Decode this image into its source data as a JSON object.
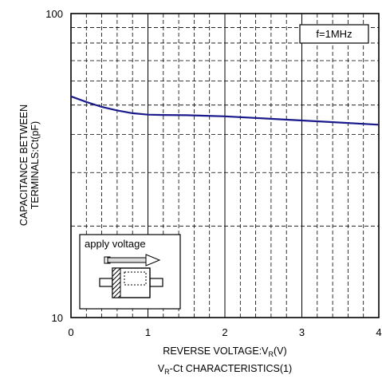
{
  "chart_data": {
    "type": "line",
    "title": "",
    "caption_main": "V",
    "caption_sub": "R",
    "caption_rest": "-Ct CHARACTERISTICS(1)",
    "xlabel_main": "REVERSE VOLTAGE:V",
    "xlabel_sub": "R",
    "xlabel_rest": "(V)",
    "ylabel_line1": "CAPACITANCE BETWEEN",
    "ylabel_line2": "TERMINALS:Ct(pF)",
    "x_scale": "linear",
    "y_scale": "log",
    "xlim": [
      0,
      4
    ],
    "ylim": [
      10,
      100
    ],
    "x_ticks": [
      "0",
      "1",
      "2",
      "3",
      "4"
    ],
    "y_ticks": [
      "10",
      "100"
    ],
    "grid": true,
    "condition_label": "f=1MHz",
    "inset_label": "apply voltage",
    "line_color": "#1a1a8c",
    "series": [
      {
        "x": [
          0,
          0.2,
          0.4,
          0.6,
          0.8,
          1.0,
          1.2,
          1.5,
          2.0,
          2.5,
          3.0,
          3.5,
          4.0
        ],
        "values": [
          53.4,
          51.2,
          49.3,
          48.0,
          47.0,
          46.5,
          46.4,
          46.3,
          45.9,
          45.2,
          44.5,
          43.8,
          43.1
        ]
      }
    ]
  }
}
